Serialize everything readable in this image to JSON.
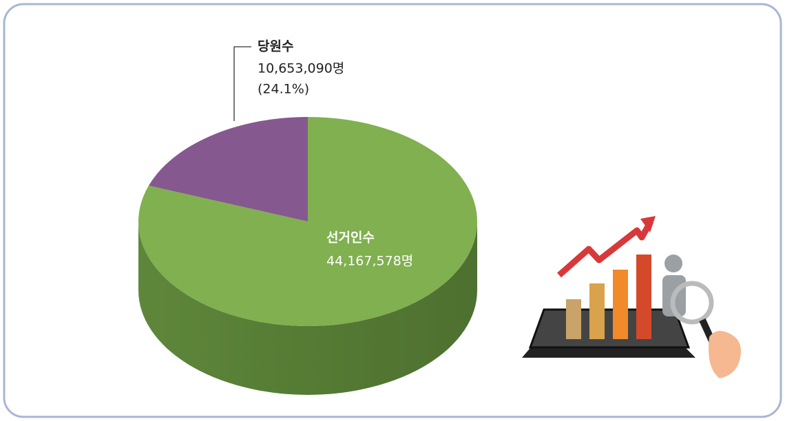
{
  "chart_data": {
    "type": "pie",
    "categories": [
      "당원수",
      "선거인수"
    ],
    "values": [
      10653090,
      44167578
    ],
    "value_labels": [
      "10,653,090명",
      "44,167,578명"
    ],
    "percent_label": "(24.1%)",
    "colors": [
      "#85598f",
      "#80b04f"
    ]
  }
}
